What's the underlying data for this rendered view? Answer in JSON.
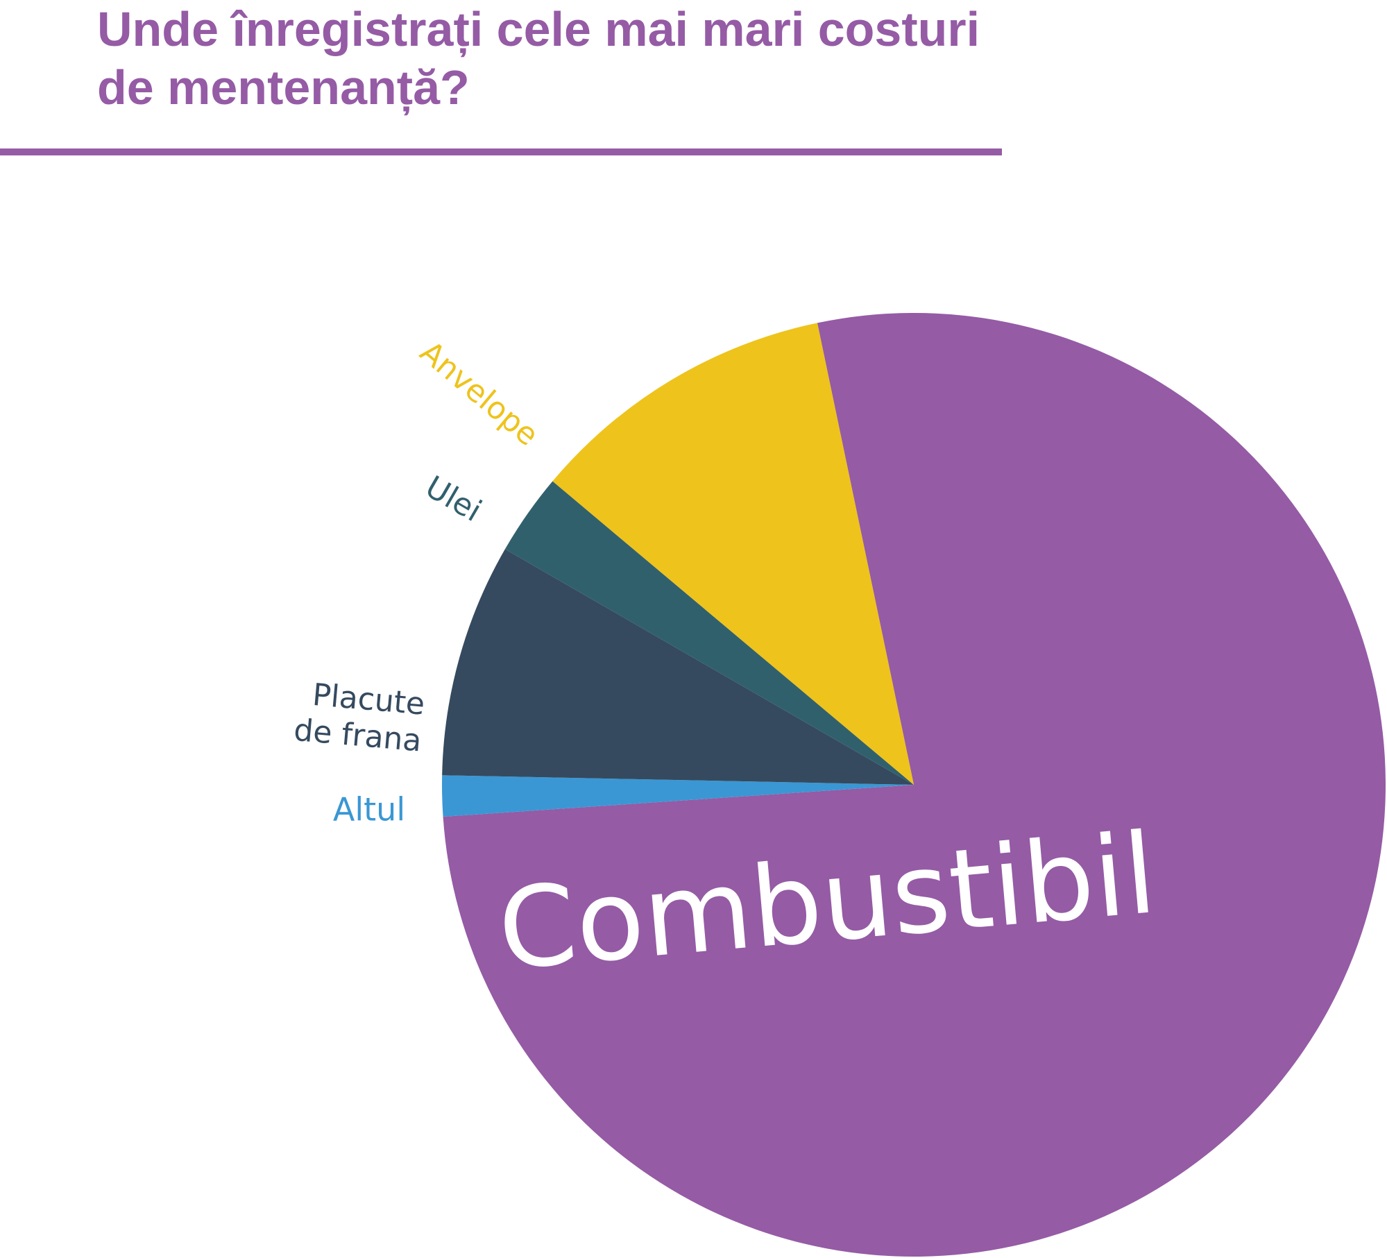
{
  "chart_data": {
    "type": "pie",
    "title": "Unde înregistrați cele mai mari costuri de mentenanță?",
    "categories": [
      "Combustibil",
      "Altul",
      "Placute de frana",
      "Ulei",
      "Anvelope"
    ],
    "values": [
      77.2,
      1.4,
      8.0,
      2.8,
      10.6
    ],
    "colors": [
      "#955ba5",
      "#3a97d4",
      "#354a5f",
      "#31606d",
      "#eec31b"
    ]
  }
}
